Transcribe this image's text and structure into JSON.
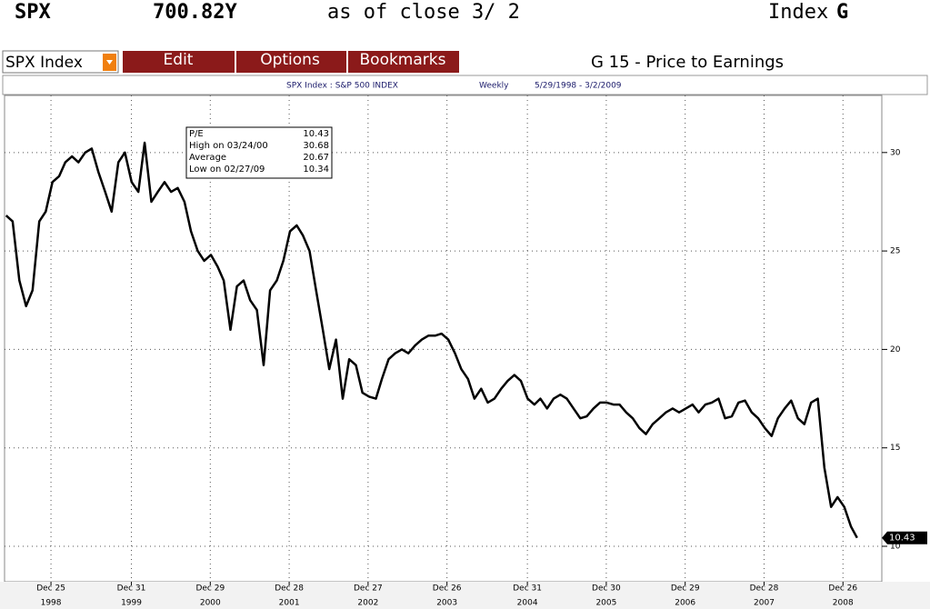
{
  "header": {
    "ticker": "SPX",
    "price": "700.82Y",
    "as_of": "as of close  3/ 2",
    "market": "Index",
    "function": "G"
  },
  "toolbar": {
    "security": "SPX Index",
    "menus": [
      "Edit",
      "Options",
      "Bookmarks"
    ],
    "page_title": "G 15 - Price to Earnings"
  },
  "subheader": {
    "security": "SPX Index : S&P 500 INDEX",
    "frequency": "Weekly",
    "range": "5/29/1998 - 3/2/2009"
  },
  "chart_data": {
    "type": "line",
    "color": "#000000",
    "grid": true,
    "x": [
      "1998-06",
      "1998-07",
      "1998-08",
      "1998-09",
      "1998-10",
      "1998-11",
      "1998-12",
      "1999-01",
      "1999-02",
      "1999-03",
      "1999-04",
      "1999-05",
      "1999-06",
      "1999-07",
      "1999-08",
      "1999-09",
      "1999-10",
      "1999-11",
      "1999-12",
      "2000-01",
      "2000-02",
      "2000-03",
      "2000-04",
      "2000-05",
      "2000-06",
      "2000-07",
      "2000-08",
      "2000-09",
      "2000-10",
      "2000-11",
      "2000-12",
      "2001-01",
      "2001-02",
      "2001-03",
      "2001-04",
      "2001-05",
      "2001-06",
      "2001-07",
      "2001-08",
      "2001-09",
      "2001-10",
      "2001-11",
      "2001-12",
      "2002-01",
      "2002-02",
      "2002-03",
      "2002-04",
      "2002-05",
      "2002-06",
      "2002-07",
      "2002-08",
      "2002-09",
      "2002-10",
      "2002-11",
      "2002-12",
      "2003-01",
      "2003-02",
      "2003-03",
      "2003-04",
      "2003-05",
      "2003-06",
      "2003-07",
      "2003-08",
      "2003-09",
      "2003-10",
      "2003-11",
      "2003-12",
      "2004-01",
      "2004-02",
      "2004-03",
      "2004-04",
      "2004-05",
      "2004-06",
      "2004-07",
      "2004-08",
      "2004-09",
      "2004-10",
      "2004-11",
      "2004-12",
      "2005-01",
      "2005-02",
      "2005-03",
      "2005-04",
      "2005-05",
      "2005-06",
      "2005-07",
      "2005-08",
      "2005-09",
      "2005-10",
      "2005-11",
      "2005-12",
      "2006-01",
      "2006-02",
      "2006-03",
      "2006-04",
      "2006-05",
      "2006-06",
      "2006-07",
      "2006-08",
      "2006-09",
      "2006-10",
      "2006-11",
      "2006-12",
      "2007-01",
      "2007-02",
      "2007-03",
      "2007-04",
      "2007-05",
      "2007-06",
      "2007-07",
      "2007-08",
      "2007-09",
      "2007-10",
      "2007-11",
      "2007-12",
      "2008-01",
      "2008-02",
      "2008-03",
      "2008-04",
      "2008-05",
      "2008-06",
      "2008-07",
      "2008-08",
      "2008-09",
      "2008-10",
      "2008-11",
      "2008-12",
      "2009-01",
      "2009-02",
      "2009-03"
    ],
    "values": [
      26.8,
      26.5,
      23.5,
      22.2,
      23.0,
      26.5,
      27.0,
      28.5,
      28.8,
      29.5,
      29.8,
      29.5,
      30.0,
      30.2,
      29.0,
      28.0,
      27.0,
      29.5,
      30.0,
      28.5,
      28.0,
      30.5,
      27.5,
      28.0,
      28.5,
      28.0,
      28.2,
      27.5,
      26.0,
      25.0,
      24.5,
      24.8,
      24.2,
      23.5,
      21.0,
      23.2,
      23.5,
      22.5,
      22.0,
      19.2,
      23.0,
      23.5,
      24.5,
      26.0,
      26.3,
      25.8,
      25.0,
      23.0,
      21.0,
      19.0,
      20.5,
      17.5,
      19.5,
      19.2,
      17.8,
      17.6,
      17.5,
      18.5,
      19.5,
      19.8,
      20.0,
      19.8,
      20.2,
      20.5,
      20.7,
      20.7,
      20.8,
      20.5,
      19.8,
      19.0,
      18.5,
      17.5,
      18.0,
      17.3,
      17.5,
      18.0,
      18.4,
      18.7,
      18.4,
      17.5,
      17.2,
      17.5,
      17.0,
      17.5,
      17.7,
      17.5,
      17.0,
      16.5,
      16.6,
      17.0,
      17.3,
      17.3,
      17.2,
      17.2,
      16.8,
      16.5,
      16.0,
      15.7,
      16.2,
      16.5,
      16.8,
      17.0,
      16.8,
      17.0,
      17.2,
      16.8,
      17.2,
      17.3,
      17.5,
      16.5,
      16.6,
      17.3,
      17.4,
      16.8,
      16.5,
      16.0,
      15.6,
      16.5,
      17.0,
      17.4,
      16.5,
      16.2,
      17.3,
      17.5,
      14.0,
      12.0,
      12.5,
      12.0,
      11.0,
      10.43
    ],
    "xlim": [
      "1998-05-29",
      "2009-03-02"
    ],
    "xticks": [
      {
        "value": "1998-12-25",
        "label": "Dec 25",
        "year": "1998"
      },
      {
        "value": "1999-12-31",
        "label": "Dec 31",
        "year": "1999"
      },
      {
        "value": "2000-12-29",
        "label": "Dec 29",
        "year": "2000"
      },
      {
        "value": "2001-12-28",
        "label": "Dec 28",
        "year": "2001"
      },
      {
        "value": "2002-12-27",
        "label": "Dec 27",
        "year": "2002"
      },
      {
        "value": "2003-12-26",
        "label": "Dec 26",
        "year": "2003"
      },
      {
        "value": "2004-12-31",
        "label": "Dec 31",
        "year": "2004"
      },
      {
        "value": "2005-12-30",
        "label": "Dec 30",
        "year": "2005"
      },
      {
        "value": "2006-12-29",
        "label": "Dec 29",
        "year": "2006"
      },
      {
        "value": "2007-12-28",
        "label": "Dec 28",
        "year": "2007"
      },
      {
        "value": "2008-12-26",
        "label": "Dec 26",
        "year": "2008"
      }
    ],
    "ylim": [
      8.2,
      32.9
    ],
    "yticks": [
      10,
      15,
      20,
      25,
      30
    ],
    "info_box": [
      {
        "label": "P/E",
        "value": 10.43
      },
      {
        "label": "High on  03/24/00",
        "value": 30.68
      },
      {
        "label": "Average",
        "value": 20.67
      },
      {
        "label": "Low on  02/27/09",
        "value": 10.34
      }
    ]
  }
}
